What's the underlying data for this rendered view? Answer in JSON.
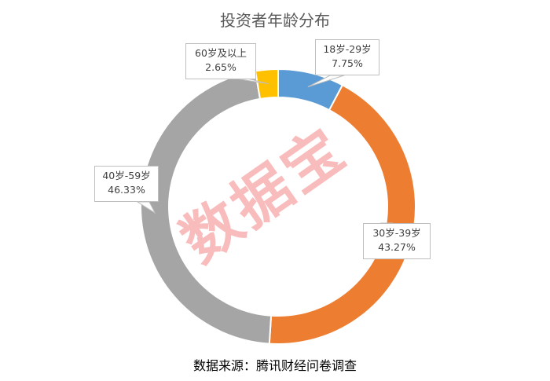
{
  "chart_data": {
    "type": "pie",
    "variant": "donut",
    "title": "投资者年龄分布",
    "categories": [
      "18岁-29岁",
      "30岁-39岁",
      "40岁-59岁",
      "60岁及以上"
    ],
    "values": [
      7.75,
      43.27,
      46.33,
      2.65
    ],
    "value_labels": [
      "7.75%",
      "43.27%",
      "46.33%",
      "2.65%"
    ],
    "colors": [
      "#5B9BD5",
      "#ED7D31",
      "#A5A5A5",
      "#FFC000"
    ],
    "start": "top",
    "direction": "clockwise"
  },
  "source": "数据来源：腾讯财经问卷调查",
  "watermark": "数据宝"
}
